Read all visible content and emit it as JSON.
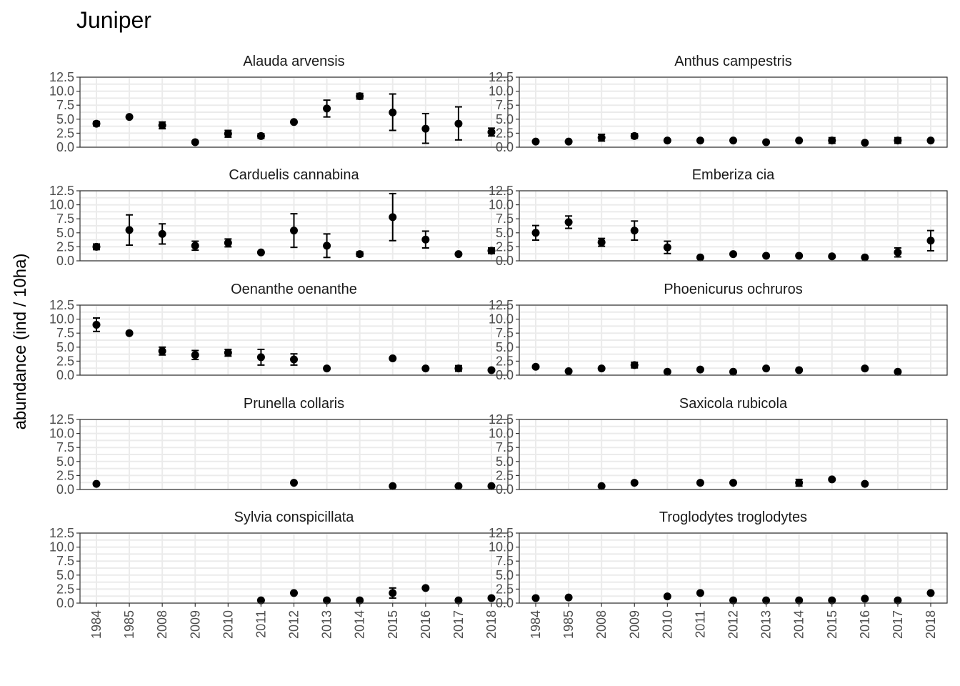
{
  "title": "Juniper",
  "ylabel": "abundance (ind / 10ha)",
  "colors": {
    "grid": "#ebebeb",
    "panel_border": "#333333",
    "points": "#000000",
    "tick_text": "#4d4d4d"
  },
  "chart_data": {
    "type": "scatter",
    "title": "Juniper",
    "ylabel": "abundance (ind / 10ha)",
    "xlabel": "",
    "x_categories": [
      "1984",
      "1985",
      "2008",
      "2009",
      "2010",
      "2011",
      "2012",
      "2013",
      "2014",
      "2015",
      "2016",
      "2017",
      "2018"
    ],
    "y_ticks": [
      "0.0",
      "2.5",
      "5.0",
      "7.5",
      "10.0",
      "12.5"
    ],
    "ylim": [
      0,
      12.5
    ],
    "grid": true,
    "error_bars": true,
    "panels": [
      {
        "name": "Alauda arvensis",
        "points": [
          {
            "x": "1984",
            "y": 4.2,
            "lo": 3.8,
            "hi": 4.6
          },
          {
            "x": "1985",
            "y": 5.4
          },
          {
            "x": "2008",
            "y": 3.9,
            "lo": 3.3,
            "hi": 4.5
          },
          {
            "x": "2009",
            "y": 0.9
          },
          {
            "x": "2010",
            "y": 2.4,
            "lo": 1.8,
            "hi": 3.0
          },
          {
            "x": "2011",
            "y": 2.0,
            "lo": 1.6,
            "hi": 2.4
          },
          {
            "x": "2012",
            "y": 4.5
          },
          {
            "x": "2013",
            "y": 6.9,
            "lo": 5.4,
            "hi": 8.4
          },
          {
            "x": "2014",
            "y": 9.1,
            "lo": 8.6,
            "hi": 9.6
          },
          {
            "x": "2015",
            "y": 6.2,
            "lo": 3.0,
            "hi": 9.5
          },
          {
            "x": "2016",
            "y": 3.3,
            "lo": 0.7,
            "hi": 6.0
          },
          {
            "x": "2017",
            "y": 4.2,
            "lo": 1.3,
            "hi": 7.2
          },
          {
            "x": "2018",
            "y": 2.7,
            "lo": 2.0,
            "hi": 3.4
          }
        ]
      },
      {
        "name": "Anthus campestris",
        "points": [
          {
            "x": "1984",
            "y": 1.0
          },
          {
            "x": "1985",
            "y": 1.0
          },
          {
            "x": "2008",
            "y": 1.7,
            "lo": 1.1,
            "hi": 2.3
          },
          {
            "x": "2009",
            "y": 2.0,
            "lo": 1.6,
            "hi": 2.4
          },
          {
            "x": "2010",
            "y": 1.2
          },
          {
            "x": "2011",
            "y": 1.2
          },
          {
            "x": "2012",
            "y": 1.2
          },
          {
            "x": "2013",
            "y": 0.9
          },
          {
            "x": "2014",
            "y": 1.2
          },
          {
            "x": "2015",
            "y": 1.2,
            "lo": 0.7,
            "hi": 1.7
          },
          {
            "x": "2016",
            "y": 0.8
          },
          {
            "x": "2017",
            "y": 1.2,
            "lo": 0.7,
            "hi": 1.7
          },
          {
            "x": "2018",
            "y": 1.2
          }
        ]
      },
      {
        "name": "Carduelis cannabina",
        "points": [
          {
            "x": "1984",
            "y": 2.5,
            "lo": 2.0,
            "hi": 3.0
          },
          {
            "x": "1985",
            "y": 5.5,
            "lo": 2.8,
            "hi": 8.2
          },
          {
            "x": "2008",
            "y": 4.8,
            "lo": 3.0,
            "hi": 6.6
          },
          {
            "x": "2009",
            "y": 2.7,
            "lo": 1.9,
            "hi": 3.5
          },
          {
            "x": "2010",
            "y": 3.2,
            "lo": 2.5,
            "hi": 3.9
          },
          {
            "x": "2011",
            "y": 1.5
          },
          {
            "x": "2012",
            "y": 5.4,
            "lo": 2.4,
            "hi": 8.4
          },
          {
            "x": "2013",
            "y": 2.7,
            "lo": 0.6,
            "hi": 4.8
          },
          {
            "x": "2014",
            "y": 1.2,
            "lo": 0.8,
            "hi": 1.6
          },
          {
            "x": "2015",
            "y": 7.8,
            "lo": 3.6,
            "hi": 12.0
          },
          {
            "x": "2016",
            "y": 3.8,
            "lo": 2.3,
            "hi": 5.3
          },
          {
            "x": "2017",
            "y": 1.2
          },
          {
            "x": "2018",
            "y": 1.8,
            "lo": 1.3,
            "hi": 2.3
          }
        ]
      },
      {
        "name": "Emberiza cia",
        "points": [
          {
            "x": "1984",
            "y": 5.0,
            "lo": 3.7,
            "hi": 6.3
          },
          {
            "x": "1985",
            "y": 6.9,
            "lo": 5.8,
            "hi": 8.0
          },
          {
            "x": "2008",
            "y": 3.3,
            "lo": 2.6,
            "hi": 4.0
          },
          {
            "x": "2009",
            "y": 5.4,
            "lo": 3.7,
            "hi": 7.1
          },
          {
            "x": "2010",
            "y": 2.4,
            "lo": 1.3,
            "hi": 3.5
          },
          {
            "x": "2011",
            "y": 0.6
          },
          {
            "x": "2012",
            "y": 1.2
          },
          {
            "x": "2013",
            "y": 0.9
          },
          {
            "x": "2014",
            "y": 0.9
          },
          {
            "x": "2015",
            "y": 0.8
          },
          {
            "x": "2016",
            "y": 0.6
          },
          {
            "x": "2017",
            "y": 1.5,
            "lo": 0.7,
            "hi": 2.3
          },
          {
            "x": "2018",
            "y": 3.6,
            "lo": 1.8,
            "hi": 5.4
          }
        ]
      },
      {
        "name": "Oenanthe oenanthe",
        "points": [
          {
            "x": "1984",
            "y": 9.0,
            "lo": 7.8,
            "hi": 10.2
          },
          {
            "x": "1985",
            "y": 7.5
          },
          {
            "x": "2008",
            "y": 4.3,
            "lo": 3.6,
            "hi": 5.0
          },
          {
            "x": "2009",
            "y": 3.6,
            "lo": 2.8,
            "hi": 4.4
          },
          {
            "x": "2010",
            "y": 4.0,
            "lo": 3.4,
            "hi": 4.6
          },
          {
            "x": "2011",
            "y": 3.2,
            "lo": 1.8,
            "hi": 4.6
          },
          {
            "x": "2012",
            "y": 2.8,
            "lo": 1.8,
            "hi": 3.8
          },
          {
            "x": "2013",
            "y": 1.2
          },
          {
            "x": "2015",
            "y": 3.0
          },
          {
            "x": "2016",
            "y": 1.2
          },
          {
            "x": "2017",
            "y": 1.2,
            "lo": 0.7,
            "hi": 1.7
          },
          {
            "x": "2018",
            "y": 0.9
          }
        ]
      },
      {
        "name": "Phoenicurus ochruros",
        "points": [
          {
            "x": "1984",
            "y": 1.5
          },
          {
            "x": "1985",
            "y": 0.7
          },
          {
            "x": "2008",
            "y": 1.2
          },
          {
            "x": "2009",
            "y": 1.8,
            "lo": 1.3,
            "hi": 2.3
          },
          {
            "x": "2010",
            "y": 0.6
          },
          {
            "x": "2011",
            "y": 1.0
          },
          {
            "x": "2012",
            "y": 0.6
          },
          {
            "x": "2013",
            "y": 1.2
          },
          {
            "x": "2014",
            "y": 0.9
          },
          {
            "x": "2016",
            "y": 1.2
          },
          {
            "x": "2017",
            "y": 0.6
          }
        ]
      },
      {
        "name": "Prunella collaris",
        "points": [
          {
            "x": "1984",
            "y": 1.0
          },
          {
            "x": "2012",
            "y": 1.2
          },
          {
            "x": "2015",
            "y": 0.6
          },
          {
            "x": "2017",
            "y": 0.6
          },
          {
            "x": "2018",
            "y": 0.6
          }
        ]
      },
      {
        "name": "Saxicola rubicola",
        "points": [
          {
            "x": "2008",
            "y": 0.6
          },
          {
            "x": "2009",
            "y": 1.2
          },
          {
            "x": "2011",
            "y": 1.2
          },
          {
            "x": "2012",
            "y": 1.2
          },
          {
            "x": "2014",
            "y": 1.2,
            "lo": 0.6,
            "hi": 1.8
          },
          {
            "x": "2015",
            "y": 1.8
          },
          {
            "x": "2016",
            "y": 1.0
          }
        ]
      },
      {
        "name": "Sylvia conspicillata",
        "points": [
          {
            "x": "2011",
            "y": 0.5
          },
          {
            "x": "2012",
            "y": 1.8
          },
          {
            "x": "2013",
            "y": 0.5
          },
          {
            "x": "2014",
            "y": 0.5
          },
          {
            "x": "2015",
            "y": 1.8,
            "lo": 0.9,
            "hi": 2.7
          },
          {
            "x": "2016",
            "y": 2.7
          },
          {
            "x": "2017",
            "y": 0.5
          },
          {
            "x": "2018",
            "y": 0.9
          }
        ]
      },
      {
        "name": "Troglodytes troglodytes",
        "points": [
          {
            "x": "1984",
            "y": 0.9
          },
          {
            "x": "1985",
            "y": 1.0
          },
          {
            "x": "2010",
            "y": 1.2
          },
          {
            "x": "2011",
            "y": 1.8
          },
          {
            "x": "2012",
            "y": 0.5
          },
          {
            "x": "2013",
            "y": 0.5
          },
          {
            "x": "2014",
            "y": 0.5
          },
          {
            "x": "2015",
            "y": 0.5
          },
          {
            "x": "2016",
            "y": 0.8
          },
          {
            "x": "2017",
            "y": 0.5
          },
          {
            "x": "2018",
            "y": 1.8
          }
        ]
      }
    ]
  }
}
